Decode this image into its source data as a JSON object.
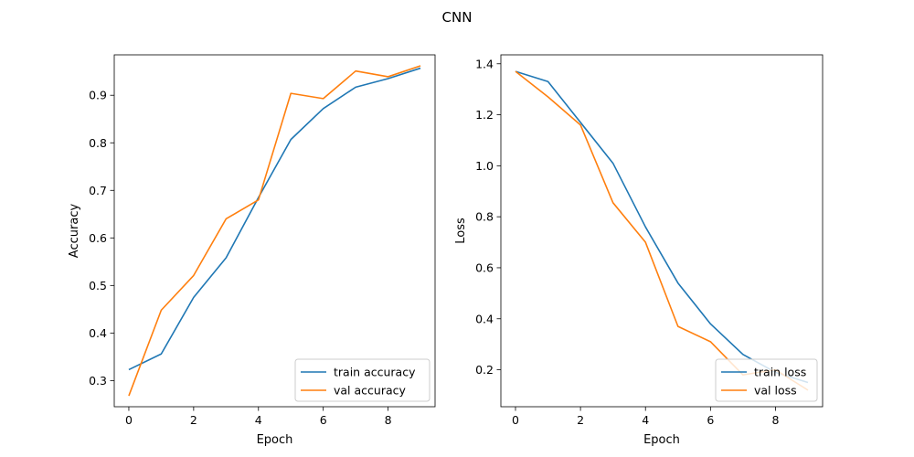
{
  "figure": {
    "suptitle": "CNN"
  },
  "colors": {
    "train": "#1f77b4",
    "val": "#ff7f0e"
  },
  "chart_data": [
    {
      "type": "line",
      "title": "",
      "xlabel": "Epoch",
      "ylabel": "Accuracy",
      "x": [
        0,
        1,
        2,
        3,
        4,
        5,
        6,
        7,
        8,
        9
      ],
      "xlim": [
        -0.45,
        9.45
      ],
      "ylim": [
        0.245,
        0.985
      ],
      "xticks": [
        0,
        2,
        4,
        6,
        8
      ],
      "yticks": [
        0.3,
        0.4,
        0.5,
        0.6,
        0.7,
        0.8,
        0.9
      ],
      "ytick_labels": [
        "0.3",
        "0.4",
        "0.5",
        "0.6",
        "0.7",
        "0.8",
        "0.9"
      ],
      "grid": false,
      "legend_position": "lower-right",
      "series": [
        {
          "name": "train accuracy",
          "color": "#1f77b4",
          "values": [
            0.323,
            0.356,
            0.475,
            0.558,
            0.685,
            0.807,
            0.872,
            0.917,
            0.935,
            0.957
          ]
        },
        {
          "name": "val accuracy",
          "color": "#ff7f0e",
          "values": [
            0.268,
            0.448,
            0.521,
            0.64,
            0.68,
            0.904,
            0.893,
            0.951,
            0.939,
            0.962
          ]
        }
      ]
    },
    {
      "type": "line",
      "title": "",
      "xlabel": "Epoch",
      "ylabel": "Loss",
      "x": [
        0,
        1,
        2,
        3,
        4,
        5,
        6,
        7,
        8,
        9
      ],
      "xlim": [
        -0.45,
        9.45
      ],
      "ylim": [
        0.055,
        1.435
      ],
      "xticks": [
        0,
        2,
        4,
        6,
        8
      ],
      "yticks": [
        0.2,
        0.4,
        0.6,
        0.8,
        1.0,
        1.2,
        1.4
      ],
      "ytick_labels": [
        "0.2",
        "0.4",
        "0.6",
        "0.8",
        "1.0",
        "1.2",
        "1.4"
      ],
      "grid": false,
      "legend_position": "lower-right",
      "series": [
        {
          "name": "train loss",
          "color": "#1f77b4",
          "values": [
            1.37,
            1.33,
            1.17,
            1.01,
            0.76,
            0.54,
            0.38,
            0.26,
            0.19,
            0.15
          ]
        },
        {
          "name": "val loss",
          "color": "#ff7f0e",
          "values": [
            1.37,
            1.27,
            1.16,
            0.855,
            0.7,
            0.37,
            0.31,
            0.18,
            0.2,
            0.12
          ]
        }
      ]
    }
  ]
}
